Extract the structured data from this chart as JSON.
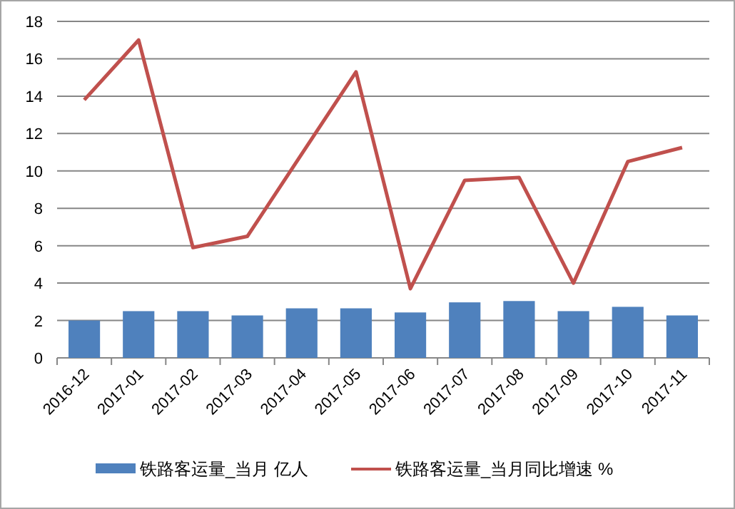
{
  "chart_data": {
    "type": "bar",
    "categories": [
      "2016-12",
      "2017-01",
      "2017-02",
      "2017-03",
      "2017-04",
      "2017-05",
      "2017-06",
      "2017-07",
      "2017-08",
      "2017-09",
      "2017-10",
      "2017-11"
    ],
    "series": [
      {
        "name": "铁路客运量_当月 亿人",
        "color": "#4f81bd",
        "values": [
          2.0,
          2.5,
          2.5,
          2.27,
          2.65,
          2.65,
          2.43,
          2.97,
          3.04,
          2.5,
          2.73,
          2.27
        ]
      },
      {
        "name": "铁路客运量_当月同比增速 %",
        "type": "line",
        "color": "#c0504d",
        "values": [
          13.8,
          17.0,
          5.9,
          6.5,
          10.9,
          15.3,
          3.7,
          9.5,
          9.65,
          4.0,
          10.5,
          11.25
        ]
      }
    ],
    "ylim": [
      0,
      18
    ],
    "yticks": [
      0,
      2,
      4,
      6,
      8,
      10,
      12,
      14,
      16,
      18
    ],
    "grid": "y",
    "legend": "bottom",
    "marker": "none"
  }
}
